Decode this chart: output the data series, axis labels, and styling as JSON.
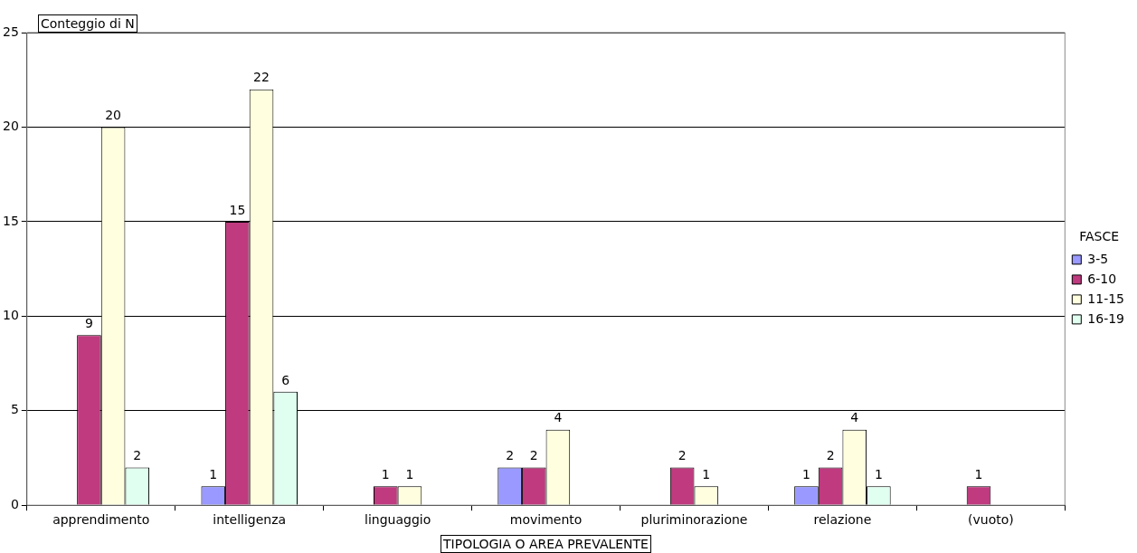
{
  "chart_data": {
    "type": "bar",
    "title": "Conteggio di N",
    "xlabel": "TIPOLOGIA O AREA PREVALENTE",
    "legend_title": "FASCE",
    "categories": [
      "apprendimento",
      "intelligenza",
      "linguaggio",
      "movimento",
      "pluriminorazione",
      "relazione",
      "(vuoto)"
    ],
    "series": [
      {
        "name": "3-5",
        "color": "#9999ff",
        "values": [
          null,
          1,
          null,
          2,
          null,
          1,
          null
        ]
      },
      {
        "name": "6-10",
        "color": "#bf3a7f",
        "values": [
          9,
          15,
          1,
          2,
          2,
          2,
          1
        ]
      },
      {
        "name": "11-15",
        "color": "#ffffe0",
        "values": [
          20,
          22,
          1,
          4,
          1,
          4,
          null
        ]
      },
      {
        "name": "16-19",
        "color": "#e0fff0",
        "values": [
          2,
          6,
          null,
          null,
          null,
          1,
          null
        ]
      }
    ],
    "ylim": [
      0,
      25
    ],
    "yticks": [
      0,
      5,
      10,
      15,
      20,
      25
    ],
    "grid": "y",
    "legend": "right",
    "data_labels": true
  }
}
